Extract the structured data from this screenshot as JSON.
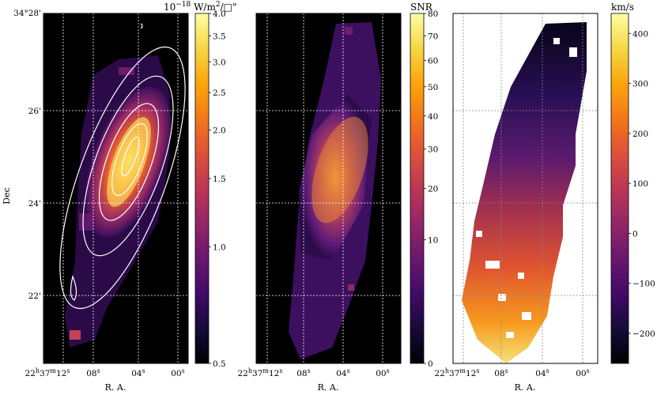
{
  "chart_data": [
    {
      "type": "heatmap",
      "panel": "flux map",
      "xlabel": "R. A.",
      "ylabel": "Dec",
      "x_ticks": [
        "22h37m12s",
        "08s",
        "04s",
        "00s"
      ],
      "y_ticks": [
        "34°28'",
        "26'",
        "24'",
        "22'"
      ],
      "contours": true,
      "colormap": "inferno",
      "colorbar": {
        "title": "10^-18 W/m²/□\"",
        "scale": "log",
        "range": [
          0.5,
          4.0
        ],
        "ticks": [
          "4.0",
          "3.5",
          "3.0",
          "2.5",
          "2.0",
          "1.5",
          "1.0",
          "0.5"
        ],
        "tick_values": [
          4.0,
          3.5,
          3.0,
          2.5,
          2.0,
          1.5,
          1.0,
          0.5
        ]
      },
      "grid": true
    },
    {
      "type": "heatmap",
      "panel": "SNR map",
      "xlabel": "R. A.",
      "x_ticks": [
        "22h37m12s",
        "08s",
        "04s",
        "00s"
      ],
      "colormap": "inferno",
      "colorbar": {
        "title": "SNR",
        "scale": "sqrt",
        "range": [
          0,
          80
        ],
        "ticks": [
          "80",
          "70",
          "60",
          "50",
          "40",
          "30",
          "20",
          "10",
          "0"
        ],
        "tick_values": [
          80,
          70,
          60,
          50,
          40,
          30,
          20,
          10,
          0
        ]
      },
      "grid": true
    },
    {
      "type": "heatmap",
      "panel": "velocity map",
      "xlabel": "R. A.",
      "x_ticks": [
        "22h37m12s",
        "08s",
        "04s",
        "00s"
      ],
      "colormap": "inferno",
      "colorbar": {
        "title": "km/s",
        "scale": "linear",
        "range": [
          -260,
          440
        ],
        "ticks": [
          "400",
          "300",
          "200",
          "100",
          "0",
          "−100",
          "−200"
        ],
        "tick_values": [
          400,
          300,
          200,
          100,
          0,
          -100,
          -200
        ]
      },
      "grid": true
    }
  ],
  "text": {
    "dec_label": "Dec",
    "ra_label": "R. A.",
    "flux_exp": "10",
    "flux_exp_sup": "−18",
    "flux_unit": " W/m",
    "flux_unit_sup": "2",
    "flux_unit_tail": "/",
    "flux_unit_end": "\"",
    "snr_title": "SNR",
    "vel_title": "km/s",
    "ra_h": "22",
    "ra_h_sup": "h",
    "ra_m": "37",
    "ra_m_sup": "m",
    "ra_s": "12",
    "ra_s_sup": "s",
    "ra_08": "08",
    "ra_04": "04",
    "ra_00": "00",
    "sec_sup": "s",
    "dec_top": "34°28'",
    "dec_26": "26'",
    "dec_24": "24'",
    "dec_22": "22'"
  },
  "colors": {
    "background": "#000000",
    "grid": "#ffffff",
    "contour": "#ffffff"
  }
}
